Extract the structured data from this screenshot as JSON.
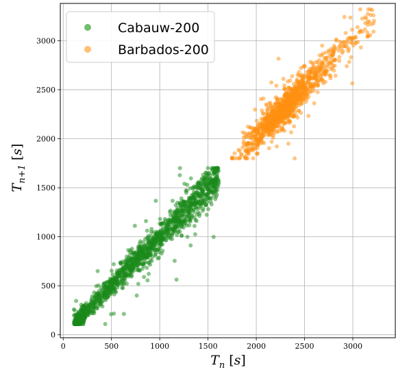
{
  "chart_data": {
    "type": "scatter",
    "title": "",
    "xlabel": "T_n [s]",
    "ylabel": "T_{n+1} [s]",
    "xlim": [
      -30,
      3440
    ],
    "ylim": [
      -30,
      3380
    ],
    "xticks": [
      0,
      500,
      1000,
      1500,
      2000,
      2500,
      3000
    ],
    "yticks": [
      0,
      500,
      1000,
      1500,
      2000,
      2500,
      3000
    ],
    "grid": true,
    "legend_position": "top-left",
    "series": [
      {
        "name": "Cabauw-200",
        "color": "#1a8a1a",
        "legend_color": "#6fbf6f",
        "x_range": [
          100,
          1650
        ],
        "y_range": [
          110,
          1700
        ],
        "trend": "T_{n+1} ≈ T_n"
      },
      {
        "name": "Barbados-200",
        "color": "#ff9010",
        "legend_color": "#ffbf75",
        "x_range": [
          1750,
          3300
        ],
        "y_range": [
          1800,
          3320
        ],
        "trend": "T_{n+1} ≈ T_n"
      }
    ]
  }
}
